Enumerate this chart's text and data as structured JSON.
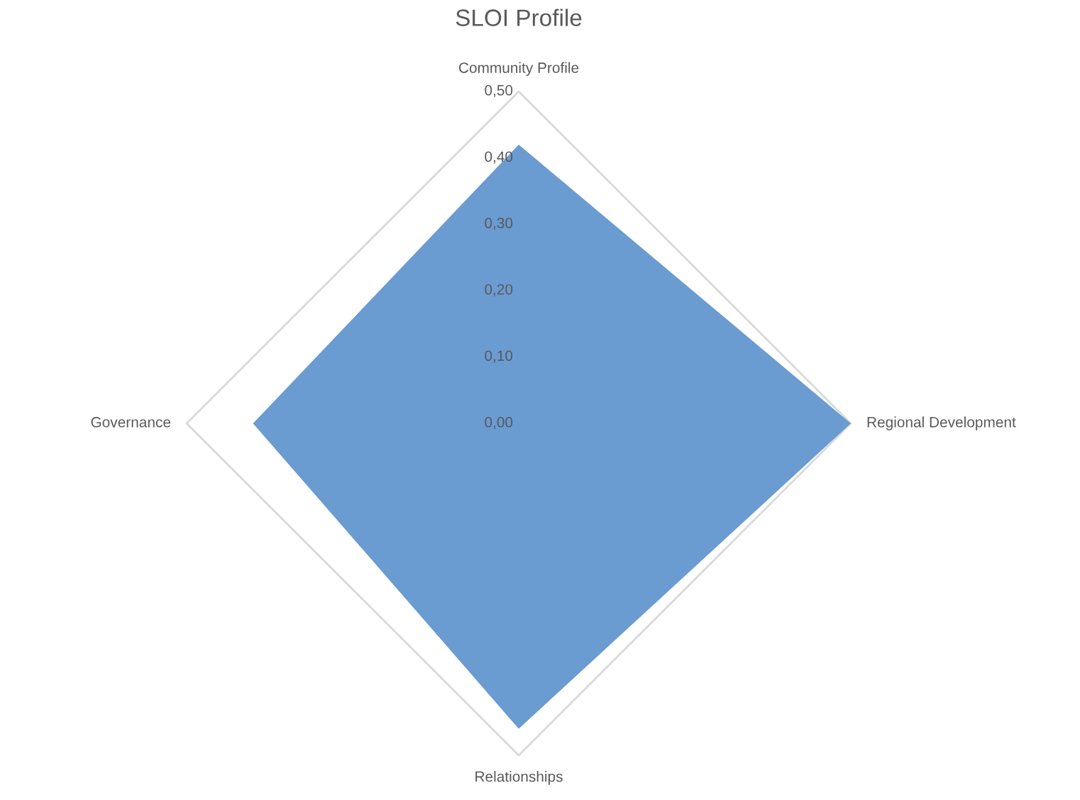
{
  "chart_data": {
    "type": "radar",
    "title": "SLOI Profile",
    "categories": [
      "Community Profile",
      "Regional Development",
      "Relationships",
      "Governance"
    ],
    "series": [
      {
        "color": "#6a9bd1",
        "values": [
          0.42,
          0.5,
          0.46,
          0.4
        ]
      }
    ],
    "ylim": [
      0,
      0.5
    ],
    "yticks": [
      {
        "value": 0,
        "label": "0,00"
      },
      {
        "value": 0.1,
        "label": "0,10"
      },
      {
        "value": 0.2,
        "label": "0,20"
      },
      {
        "value": 0.3,
        "label": "0,30"
      },
      {
        "value": 0.4,
        "label": "0,40"
      },
      {
        "value": 0.5,
        "label": "0,50"
      }
    ]
  }
}
